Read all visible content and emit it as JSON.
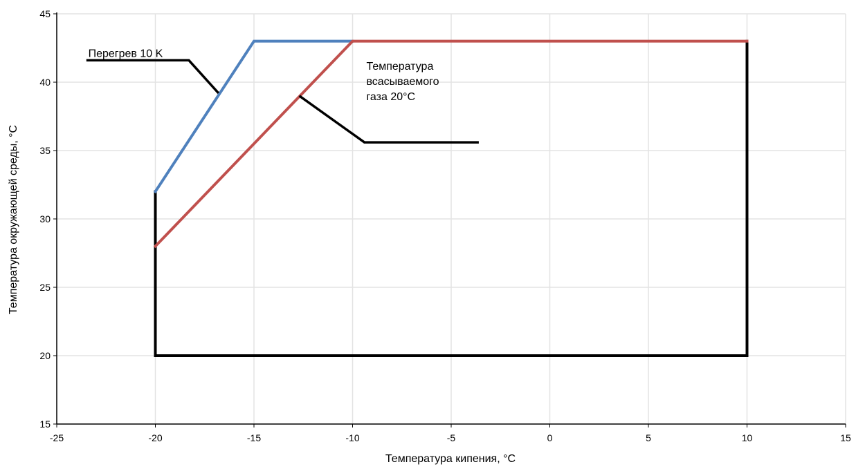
{
  "chart_data": {
    "type": "line",
    "title": "",
    "xlabel": "Температура кипения, °C",
    "ylabel": "Температура окружающей среды, °C",
    "xlim": [
      -25,
      15
    ],
    "ylim": [
      15,
      45
    ],
    "x_ticks": [
      -25,
      -20,
      -15,
      -10,
      -5,
      0,
      5,
      10,
      15
    ],
    "y_ticks": [
      15,
      20,
      25,
      30,
      35,
      40,
      45
    ],
    "grid": true,
    "legend": "none",
    "series": [
      {
        "color": "#000000",
        "points": [
          [
            -20,
            32
          ],
          [
            -20,
            20
          ],
          [
            10,
            20
          ],
          [
            10,
            43
          ]
        ]
      },
      {
        "color": "#4f81bd",
        "points": [
          [
            -20,
            32
          ],
          [
            -15,
            43
          ],
          [
            -10,
            43
          ]
        ]
      },
      {
        "color": "#c0504d",
        "points": [
          [
            -20,
            28
          ],
          [
            -10,
            43
          ],
          [
            10,
            43
          ]
        ]
      }
    ],
    "annotations": [
      {
        "name": "superheat",
        "lines": [
          "Перегрев 10 K"
        ],
        "leader": [
          [
            -16.8,
            39.2
          ],
          [
            -18.3,
            41.6
          ],
          [
            -23.5,
            41.6
          ]
        ],
        "text_anchor": [
          -23.4,
          41.85
        ]
      },
      {
        "name": "suction-gas",
        "lines": [
          "Температура",
          "всасываемого",
          "газа 20°C"
        ],
        "leader": [
          [
            -12.7,
            39.0
          ],
          [
            -9.4,
            35.6
          ],
          [
            -3.6,
            35.6
          ]
        ],
        "text_anchor": [
          -9.3,
          40.9
        ]
      }
    ]
  }
}
